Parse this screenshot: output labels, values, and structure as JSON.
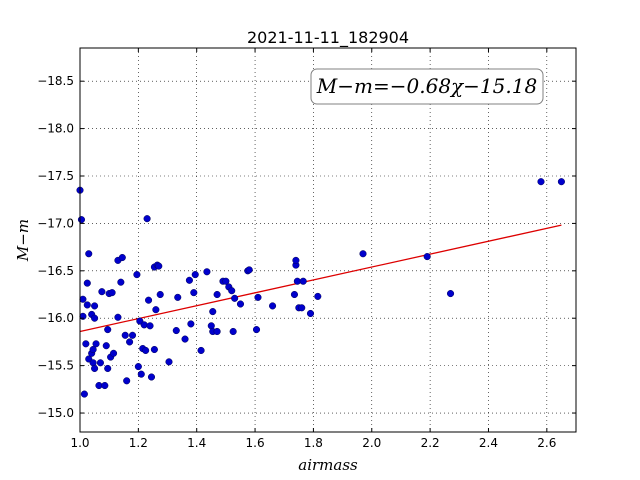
{
  "chart_data": {
    "type": "scatter",
    "title": "2021-11-11_182904",
    "xlabel": "airmass",
    "ylabel": "M−m",
    "annotation": "M−m=−0.68χ−15.18",
    "xlim": [
      1.0,
      2.7
    ],
    "ylim": [
      -18.85,
      -14.8
    ],
    "y_inverted": true,
    "grid": true,
    "x_ticks": [
      1.0,
      1.2,
      1.4,
      1.6,
      1.8,
      2.0,
      2.2,
      2.4,
      2.6
    ],
    "x_tick_labels": [
      "1.0",
      "1.2",
      "1.4",
      "1.6",
      "1.8",
      "2.0",
      "2.2",
      "2.4",
      "2.6"
    ],
    "y_ticks": [
      -15.0,
      -15.5,
      -16.0,
      -16.5,
      -17.0,
      -17.5,
      -18.0,
      -18.5
    ],
    "y_tick_labels": [
      "−15.0",
      "−15.5",
      "−16.0",
      "−16.5",
      "−17.0",
      "−17.5",
      "−18.0",
      "−18.5"
    ],
    "point_color": "#0000cc",
    "line_color": "#dd0000",
    "fit": {
      "slope": -0.68,
      "intercept": -15.18,
      "x_range": [
        1.0,
        2.65
      ]
    },
    "points": [
      [
        1.0,
        -17.35
      ],
      [
        1.005,
        -17.04
      ],
      [
        1.01,
        -16.02
      ],
      [
        1.01,
        -16.2
      ],
      [
        1.015,
        -15.2
      ],
      [
        1.02,
        -15.73
      ],
      [
        1.025,
        -16.37
      ],
      [
        1.025,
        -16.14
      ],
      [
        1.03,
        -16.68
      ],
      [
        1.03,
        -15.57
      ],
      [
        1.04,
        -16.04
      ],
      [
        1.04,
        -15.63
      ],
      [
        1.045,
        -15.67
      ],
      [
        1.045,
        -15.53
      ],
      [
        1.05,
        -16.0
      ],
      [
        1.05,
        -16.13
      ],
      [
        1.05,
        -15.47
      ],
      [
        1.055,
        -15.73
      ],
      [
        1.065,
        -15.29
      ],
      [
        1.07,
        -15.53
      ],
      [
        1.075,
        -16.28
      ],
      [
        1.085,
        -15.29
      ],
      [
        1.09,
        -15.71
      ],
      [
        1.095,
        -15.88
      ],
      [
        1.095,
        -15.47
      ],
      [
        1.1,
        -16.26
      ],
      [
        1.105,
        -15.59
      ],
      [
        1.11,
        -16.27
      ],
      [
        1.115,
        -15.63
      ],
      [
        1.13,
        -16.61
      ],
      [
        1.13,
        -16.01
      ],
      [
        1.14,
        -16.38
      ],
      [
        1.145,
        -16.64
      ],
      [
        1.155,
        -15.82
      ],
      [
        1.16,
        -15.34
      ],
      [
        1.17,
        -15.75
      ],
      [
        1.18,
        -15.82
      ],
      [
        1.195,
        -16.46
      ],
      [
        1.2,
        -15.49
      ],
      [
        1.205,
        -15.97
      ],
      [
        1.21,
        -15.41
      ],
      [
        1.215,
        -15.68
      ],
      [
        1.22,
        -15.93
      ],
      [
        1.225,
        -15.66
      ],
      [
        1.23,
        -17.05
      ],
      [
        1.235,
        -16.19
      ],
      [
        1.24,
        -15.92
      ],
      [
        1.245,
        -15.38
      ],
      [
        1.255,
        -16.54
      ],
      [
        1.255,
        -15.67
      ],
      [
        1.26,
        -16.09
      ],
      [
        1.265,
        -16.56
      ],
      [
        1.27,
        -16.55
      ],
      [
        1.275,
        -16.25
      ],
      [
        1.305,
        -15.54
      ],
      [
        1.33,
        -15.87
      ],
      [
        1.335,
        -16.22
      ],
      [
        1.36,
        -15.78
      ],
      [
        1.375,
        -16.4
      ],
      [
        1.38,
        -15.94
      ],
      [
        1.39,
        -16.27
      ],
      [
        1.395,
        -16.46
      ],
      [
        1.415,
        -15.66
      ],
      [
        1.435,
        -16.49
      ],
      [
        1.45,
        -15.92
      ],
      [
        1.455,
        -15.86
      ],
      [
        1.455,
        -16.07
      ],
      [
        1.47,
        -16.25
      ],
      [
        1.47,
        -15.86
      ],
      [
        1.49,
        -16.39
      ],
      [
        1.5,
        -16.39
      ],
      [
        1.51,
        -16.33
      ],
      [
        1.52,
        -16.29
      ],
      [
        1.525,
        -15.86
      ],
      [
        1.53,
        -16.21
      ],
      [
        1.55,
        -16.15
      ],
      [
        1.575,
        -16.5
      ],
      [
        1.58,
        -16.51
      ],
      [
        1.605,
        -15.88
      ],
      [
        1.61,
        -16.22
      ],
      [
        1.66,
        -16.13
      ],
      [
        1.735,
        -16.25
      ],
      [
        1.74,
        -16.56
      ],
      [
        1.74,
        -16.61
      ],
      [
        1.745,
        -16.39
      ],
      [
        1.75,
        -16.11
      ],
      [
        1.76,
        -16.11
      ],
      [
        1.765,
        -16.39
      ],
      [
        1.79,
        -16.05
      ],
      [
        1.815,
        -16.23
      ],
      [
        1.97,
        -16.68
      ],
      [
        2.19,
        -16.65
      ],
      [
        2.27,
        -16.26
      ],
      [
        2.58,
        -17.44
      ],
      [
        2.65,
        -17.44
      ]
    ]
  }
}
